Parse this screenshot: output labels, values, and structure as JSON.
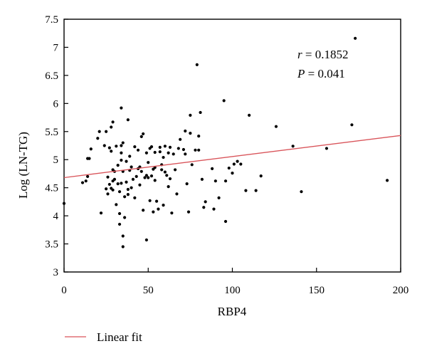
{
  "chart_data": {
    "type": "scatter",
    "xlabel": "RBP4",
    "ylabel": "Log (LN-TG)",
    "xlim": [
      0,
      200
    ],
    "ylim": [
      3,
      7.5
    ],
    "xticks": [
      0,
      50,
      100,
      150,
      200
    ],
    "yticks": [
      3,
      3.5,
      4,
      4.5,
      5,
      5.5,
      6,
      6.5,
      7,
      7.5
    ],
    "grid": false,
    "legend_position": "bottom-left",
    "annotations": {
      "r_symbol": "r",
      "r_value": " = 0.1852",
      "p_symbol": "P",
      "p_value": " = 0.041"
    },
    "fit_line": {
      "name": "Linear fit",
      "color": "#d9545a",
      "points": [
        [
          0,
          4.68
        ],
        [
          200,
          5.43
        ]
      ]
    },
    "series": [
      {
        "marker_color": "#000000",
        "points": [
          [
            0,
            4.22
          ],
          [
            11,
            4.59
          ],
          [
            13,
            4.62
          ],
          [
            14,
            5.02
          ],
          [
            14,
            4.7
          ],
          [
            15,
            5.02
          ],
          [
            16,
            5.19
          ],
          [
            20,
            5.38
          ],
          [
            21,
            5.5
          ],
          [
            22,
            4.05
          ],
          [
            24,
            5.25
          ],
          [
            25,
            5.5
          ],
          [
            25,
            4.48
          ],
          [
            26,
            4.69
          ],
          [
            26,
            4.39
          ],
          [
            27,
            5.21
          ],
          [
            27,
            4.56
          ],
          [
            28,
            5.58
          ],
          [
            28,
            5.15
          ],
          [
            28,
            4.49
          ],
          [
            29,
            5.67
          ],
          [
            29,
            4.82
          ],
          [
            29,
            4.62
          ],
          [
            29,
            4.46
          ],
          [
            30,
            4.79
          ],
          [
            30,
            4.65
          ],
          [
            31,
            5.24
          ],
          [
            31,
            4.2
          ],
          [
            32,
            4.9
          ],
          [
            32,
            4.57
          ],
          [
            33,
            3.85
          ],
          [
            33,
            4.04
          ],
          [
            33,
            4.43
          ],
          [
            34,
            5.92
          ],
          [
            34,
            5.25
          ],
          [
            34,
            5.12
          ],
          [
            34,
            4.99
          ],
          [
            34,
            4.58
          ],
          [
            35,
            5.3
          ],
          [
            35,
            4.79
          ],
          [
            35,
            3.64
          ],
          [
            35,
            3.45
          ],
          [
            36,
            4.34
          ],
          [
            36,
            3.97
          ],
          [
            37,
            4.97
          ],
          [
            37,
            4.6
          ],
          [
            38,
            5.71
          ],
          [
            38,
            4.47
          ],
          [
            38,
            4.38
          ],
          [
            39,
            5.06
          ],
          [
            39,
            4.81
          ],
          [
            40,
            4.87
          ],
          [
            40,
            4.5
          ],
          [
            41,
            4.65
          ],
          [
            42,
            5.23
          ],
          [
            42,
            4.32
          ],
          [
            43,
            4.7
          ],
          [
            44,
            5.17
          ],
          [
            44,
            4.84
          ],
          [
            45,
            4.87
          ],
          [
            45,
            4.55
          ],
          [
            46,
            5.41
          ],
          [
            46,
            4.79
          ],
          [
            47,
            5.46
          ],
          [
            47,
            4.1
          ],
          [
            48,
            4.68
          ],
          [
            49,
            5.12
          ],
          [
            49,
            4.72
          ],
          [
            49,
            3.57
          ],
          [
            50,
            4.95
          ],
          [
            50,
            4.68
          ],
          [
            51,
            5.2
          ],
          [
            51,
            4.27
          ],
          [
            52,
            5.23
          ],
          [
            52,
            4.71
          ],
          [
            53,
            4.83
          ],
          [
            53,
            4.07
          ],
          [
            54,
            5.13
          ],
          [
            54,
            4.86
          ],
          [
            54,
            4.63
          ],
          [
            55,
            4.26
          ],
          [
            56,
            4.12
          ],
          [
            57,
            5.22
          ],
          [
            57,
            5.14
          ],
          [
            58,
            4.91
          ],
          [
            58,
            4.82
          ],
          [
            59,
            5.04
          ],
          [
            59,
            4.19
          ],
          [
            60,
            5.24
          ],
          [
            60,
            4.78
          ],
          [
            61,
            4.72
          ],
          [
            62,
            5.12
          ],
          [
            62,
            4.52
          ],
          [
            63,
            5.22
          ],
          [
            63,
            4.66
          ],
          [
            64,
            4.05
          ],
          [
            65,
            5.1
          ],
          [
            66,
            4.82
          ],
          [
            67,
            4.39
          ],
          [
            68,
            5.2
          ],
          [
            69,
            5.36
          ],
          [
            71,
            5.18
          ],
          [
            72,
            5.51
          ],
          [
            72,
            5.1
          ],
          [
            73,
            4.57
          ],
          [
            74,
            4.07
          ],
          [
            75,
            5.79
          ],
          [
            75,
            5.47
          ],
          [
            76,
            4.91
          ],
          [
            78,
            5.17
          ],
          [
            79,
            6.69
          ],
          [
            80,
            5.17
          ],
          [
            80,
            5.42
          ],
          [
            81,
            5.84
          ],
          [
            82,
            4.65
          ],
          [
            83,
            4.15
          ],
          [
            84,
            4.25
          ],
          [
            88,
            4.84
          ],
          [
            89,
            4.12
          ],
          [
            90,
            4.62
          ],
          [
            92,
            4.32
          ],
          [
            95,
            6.05
          ],
          [
            96,
            4.62
          ],
          [
            96,
            3.9
          ],
          [
            98,
            4.85
          ],
          [
            100,
            4.76
          ],
          [
            101,
            4.92
          ],
          [
            103,
            4.97
          ],
          [
            105,
            4.92
          ],
          [
            108,
            4.45
          ],
          [
            110,
            5.79
          ],
          [
            114,
            4.45
          ],
          [
            117,
            4.71
          ],
          [
            126,
            5.59
          ],
          [
            136,
            5.24
          ],
          [
            141,
            4.43
          ],
          [
            156,
            5.2
          ],
          [
            171,
            5.62
          ],
          [
            173,
            7.16
          ],
          [
            192,
            4.63
          ]
        ]
      }
    ]
  }
}
